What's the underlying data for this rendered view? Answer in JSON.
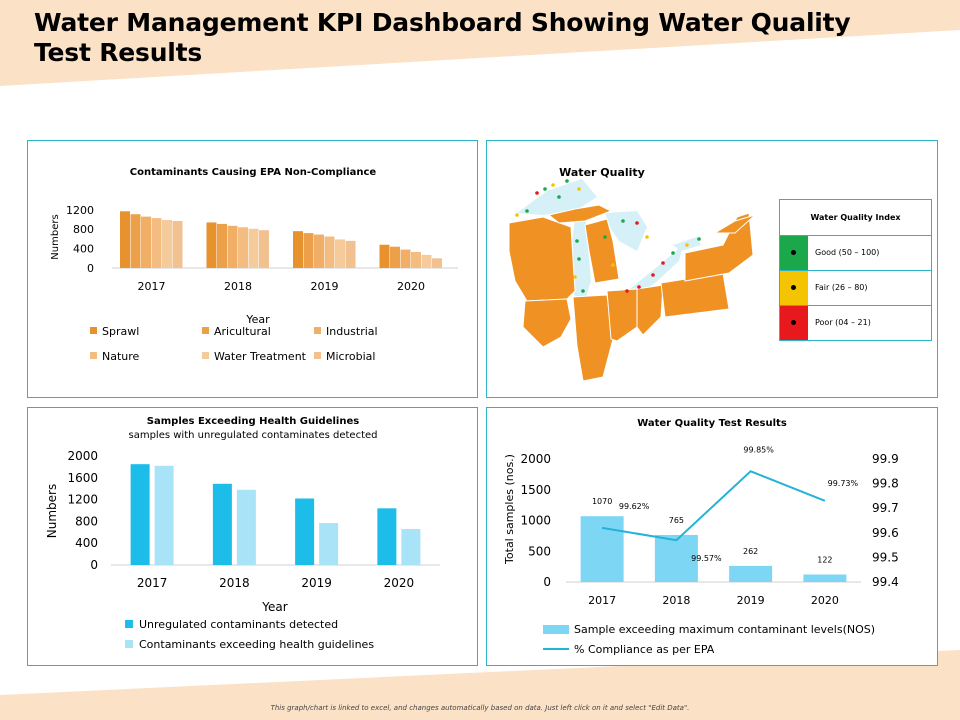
{
  "page": {
    "title": "Water Management KPI Dashboard Showing Water Quality Test Results",
    "footer": "This graph/chart is linked to excel, and changes automatically based on data. Just left click on it and select \"Edit Data\"."
  },
  "water_quality": {
    "title": "Water Quality",
    "index_title": "Water Quality Index",
    "index": [
      {
        "label": "Good (50 – 100)",
        "color": "#1aa84a"
      },
      {
        "label": "Fair (26 – 80)",
        "color": "#f5c400"
      },
      {
        "label": "Poor (04 – 21)",
        "color": "#e8191c"
      }
    ]
  },
  "chart_data": [
    {
      "id": "contaminants",
      "type": "bar",
      "title": "Contaminants Causing EPA Non-Compliance",
      "xlabel": "Year",
      "ylabel": "Numbers",
      "categories": [
        "2017",
        "2018",
        "2019",
        "2020"
      ],
      "yticks": [
        0,
        400,
        800,
        1200
      ],
      "ylim": [
        0,
        1300
      ],
      "series": [
        {
          "name": "Sprawl",
          "color": "#e8922d",
          "values": [
            1170,
            940,
            760,
            480
          ]
        },
        {
          "name": "Aricultural",
          "color": "#eda04a",
          "values": [
            1110,
            910,
            720,
            440
          ]
        },
        {
          "name": "Industrial",
          "color": "#f0ae66",
          "values": [
            1060,
            870,
            690,
            380
          ]
        },
        {
          "name": "Nature",
          "color": "#f3bc80",
          "values": [
            1030,
            840,
            650,
            330
          ]
        },
        {
          "name": "Water Treatment",
          "color": "#f6cb9c",
          "values": [
            990,
            810,
            590,
            270
          ]
        },
        {
          "name": "Microbial",
          "color": "#f2c190",
          "values": [
            970,
            780,
            560,
            200
          ]
        }
      ]
    },
    {
      "id": "health",
      "type": "bar",
      "title": "Samples Exceeding Health Guidelines",
      "subtitle": "samples with unregulated contaminates detected",
      "xlabel": "Year",
      "ylabel": "Numbers",
      "categories": [
        "2017",
        "2018",
        "2019",
        "2020"
      ],
      "yticks": [
        0,
        400,
        800,
        1200,
        1600,
        2000
      ],
      "ylim": [
        0,
        2000
      ],
      "series": [
        {
          "name": "Unregulated contaminants detected",
          "color": "#1cbde8",
          "values": [
            1850,
            1490,
            1220,
            1040
          ]
        },
        {
          "name": "Contaminants exceeding health guidelines",
          "color": "#a9e3f7",
          "values": [
            1820,
            1380,
            770,
            660
          ]
        }
      ]
    },
    {
      "id": "test_results",
      "type": "bar",
      "title": "Water Quality Test Results",
      "xlabel": "",
      "ylabel": "Total samples (nos.)",
      "categories": [
        "2017",
        "2018",
        "2019",
        "2020"
      ],
      "yticks": [
        0,
        500,
        1000,
        1500,
        2000
      ],
      "ylim": [
        0,
        2000
      ],
      "y2ticks": [
        "99.4",
        "99.5",
        "99.6",
        "99.7",
        "99.8",
        "99.9"
      ],
      "y2lim": [
        99.4,
        99.9
      ],
      "series": [
        {
          "name": "Sample exceeding maximum contaminant levels(NOS)",
          "type": "bar",
          "color": "#7dd7f4",
          "values": [
            1070,
            765,
            262,
            122
          ],
          "labels": [
            "1070",
            "765",
            "262",
            "122"
          ]
        },
        {
          "name": "% Compliance as per EPA",
          "type": "line",
          "axis": "right",
          "color": "#23b3d6",
          "values": [
            99.62,
            99.57,
            99.85,
            99.73
          ],
          "labels": [
            "99.62%",
            "99.57%",
            "99.85%",
            "99.73%"
          ]
        }
      ]
    }
  ]
}
